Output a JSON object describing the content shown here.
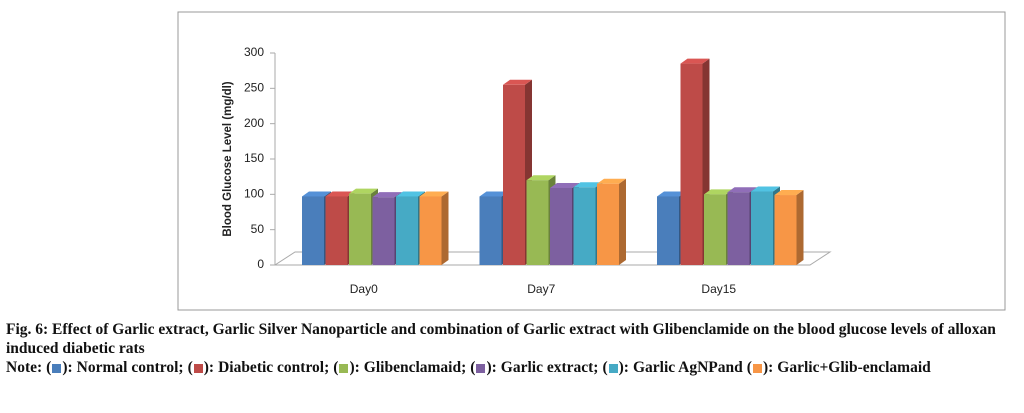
{
  "chart_data": {
    "type": "bar3d",
    "y_label": "Blood Glucose Level (mg/dl)",
    "categories": [
      "Day0",
      "Day7",
      "Day15"
    ],
    "series": [
      {
        "name": "Normal control",
        "color": "#4a7ebb",
        "values": [
          97,
          97,
          97
        ]
      },
      {
        "name": "Diabetic control",
        "color": "#be4b48",
        "values": [
          97,
          255,
          285
        ]
      },
      {
        "name": "Glibenclamaid",
        "color": "#98b954",
        "values": [
          101,
          120,
          100
        ]
      },
      {
        "name": "Garlic extract",
        "color": "#7d60a0",
        "values": [
          96,
          109,
          103
        ]
      },
      {
        "name": "Garlic AgNP",
        "color": "#46aac5",
        "values": [
          97,
          110,
          104
        ]
      },
      {
        "name": "Garlic+Glib-enclamaid",
        "color": "#f79646",
        "values": [
          97,
          115,
          99
        ]
      }
    ],
    "ylim": [
      0,
      300
    ],
    "yticks": [
      0,
      50,
      100,
      150,
      200,
      250,
      300
    ]
  },
  "caption": {
    "title": "Fig. 6: Effect of Garlic extract, Garlic Silver Nanoparticle and combination of Garlic extract with Glibenclamide on the blood glucose levels of alloxan induced diabetic rats",
    "note_label": "Note:",
    "swatch_open": "(",
    "swatch_close": "):",
    "separators": [
      ";",
      ";",
      ";",
      ";",
      "and"
    ]
  }
}
